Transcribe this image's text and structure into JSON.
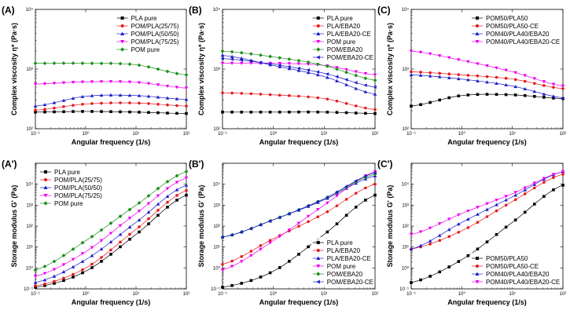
{
  "colors": {
    "black": "#000000",
    "red": "#e8191c",
    "blue": "#1c1cc8",
    "magenta": "#ee00ee",
    "green": "#1a8f1a"
  },
  "chart_data": [
    {
      "panel": "(A)",
      "type": "line",
      "xscale": "log",
      "yscale": "log",
      "xlim": [
        0.1,
        100
      ],
      "ylim": [
        100,
        10000
      ],
      "xlabel": "Angular frequency (1/s)",
      "ylabel": "Complex viscosity η* (Pa·s)",
      "xticks": [
        "10⁻¹",
        "10⁰",
        "10¹",
        "10²"
      ],
      "yticks": [
        "10²",
        "10³",
        "10⁴"
      ],
      "legend_position": "top-right",
      "series": [
        {
          "name": "PLA pure",
          "color": "#000000",
          "marker": "square",
          "x": [
            0.1,
            1,
            10,
            100
          ],
          "y": [
            190,
            195,
            190,
            180
          ]
        },
        {
          "name": "POM/PLA(25/75)",
          "color": "#e8191c",
          "marker": "circle",
          "x": [
            0.1,
            1,
            10,
            100
          ],
          "y": [
            205,
            260,
            270,
            240
          ]
        },
        {
          "name": "POM/PLA(50/50)",
          "color": "#1c1cc8",
          "marker": "triangle-up",
          "x": [
            0.1,
            1,
            10,
            100
          ],
          "y": [
            240,
            350,
            360,
            310
          ]
        },
        {
          "name": "POM/PLA(75/25)",
          "color": "#ee00ee",
          "marker": "triangle-down",
          "x": [
            0.1,
            1,
            10,
            100
          ],
          "y": [
            560,
            610,
            600,
            480
          ]
        },
        {
          "name": "POM pure",
          "color": "#1a8f1a",
          "marker": "diamond",
          "x": [
            0.1,
            1,
            10,
            100
          ],
          "y": [
            1250,
            1250,
            1180,
            800
          ]
        }
      ]
    },
    {
      "panel": "(B)",
      "type": "line",
      "xscale": "log",
      "yscale": "log",
      "xlim": [
        0.1,
        100
      ],
      "ylim": [
        100,
        10000
      ],
      "xlabel": "Angular frequency (1/s)",
      "ylabel": "Complex viscosity η* (Pa·s)",
      "xticks": [
        "10⁻¹",
        "10⁰",
        "10¹",
        "10²"
      ],
      "yticks": [
        "10²",
        "10³",
        "10⁴"
      ],
      "legend_position": "top-right",
      "series": [
        {
          "name": "PLA pure",
          "color": "#000000",
          "marker": "square",
          "x": [
            0.1,
            1,
            10,
            100
          ],
          "y": [
            190,
            190,
            190,
            180
          ]
        },
        {
          "name": "PLA/EBA20",
          "color": "#e8191c",
          "marker": "circle",
          "x": [
            0.1,
            1,
            10,
            100
          ],
          "y": [
            400,
            370,
            320,
            210
          ]
        },
        {
          "name": "PLA/EBA20-CE",
          "color": "#1c1cc8",
          "marker": "triangle-up",
          "x": [
            0.1,
            1,
            10,
            100
          ],
          "y": [
            1700,
            1150,
            750,
            380
          ]
        },
        {
          "name": "POM pure",
          "color": "#ee00ee",
          "marker": "triangle-down",
          "x": [
            0.1,
            1,
            10,
            100
          ],
          "y": [
            1250,
            1250,
            1150,
            800
          ]
        },
        {
          "name": "POM/EBA20",
          "color": "#1a8f1a",
          "marker": "diamond",
          "x": [
            0.1,
            1,
            10,
            100
          ],
          "y": [
            2000,
            1600,
            1150,
            650
          ]
        },
        {
          "name": "POM/EBA20-CE",
          "color": "#1c1cc8",
          "marker": "triangle-left",
          "x": [
            0.1,
            1,
            10,
            100
          ],
          "y": [
            1500,
            1200,
            850,
            500
          ]
        }
      ]
    },
    {
      "panel": "(C)",
      "type": "line",
      "xscale": "log",
      "yscale": "log",
      "xlim": [
        0.1,
        100
      ],
      "ylim": [
        100,
        10000
      ],
      "xlabel": "Angular frequency (1/s)",
      "ylabel": "Complex viscosity η* (Pa·s)",
      "xticks": [
        "10⁻¹",
        "10⁰",
        "10¹",
        "10²"
      ],
      "yticks": [
        "10²",
        "10³",
        "10⁴"
      ],
      "legend_position": "top-right",
      "series": [
        {
          "name": "POM50/PLA50",
          "color": "#000000",
          "marker": "square",
          "x": [
            0.1,
            1,
            10,
            100
          ],
          "y": [
            240,
            360,
            370,
            320
          ]
        },
        {
          "name": "POM50/PLA50-CE",
          "color": "#e8191c",
          "marker": "circle",
          "x": [
            0.1,
            1,
            10,
            100
          ],
          "y": [
            900,
            800,
            680,
            470
          ]
        },
        {
          "name": "POM40/PLA40/EBA20",
          "color": "#1c1cc8",
          "marker": "triangle-up",
          "x": [
            0.1,
            1,
            10,
            100
          ],
          "y": [
            800,
            680,
            520,
            330
          ]
        },
        {
          "name": "POM40/PLA40/EBA20-CE",
          "color": "#ee00ee",
          "marker": "triangle-down",
          "x": [
            0.1,
            1,
            10,
            100
          ],
          "y": [
            2000,
            1400,
            900,
            520
          ]
        }
      ]
    },
    {
      "panel": "(A')",
      "type": "line",
      "xscale": "log",
      "yscale": "log",
      "xlim": [
        0.1,
        100
      ],
      "ylim": [
        0.1,
        100000
      ],
      "xlabel": "Angular frequency (1/s)",
      "ylabel": "Storage modulus G' (Pa)",
      "xticks": [
        "10⁻¹",
        "10⁰",
        "10¹",
        "10²"
      ],
      "yticks": [
        "10⁻¹",
        "10⁰",
        "10¹",
        "10²",
        "10³",
        "10⁴"
      ],
      "legend_position": "top-left",
      "series": [
        {
          "name": "PLA pure",
          "color": "#000000",
          "marker": "square",
          "x": [
            0.1,
            1,
            10,
            100
          ],
          "y": [
            0.12,
            0.7,
            40,
            3000
          ]
        },
        {
          "name": "POM/PLA(25/75)",
          "color": "#e8191c",
          "marker": "circle",
          "x": [
            0.1,
            1,
            10,
            100
          ],
          "y": [
            0.14,
            1,
            70,
            5000
          ]
        },
        {
          "name": "POM/PLA(50/50)",
          "color": "#1c1cc8",
          "marker": "triangle-up",
          "x": [
            0.1,
            1,
            10,
            100
          ],
          "y": [
            0.2,
            2.5,
            150,
            9000
          ]
        },
        {
          "name": "POM/PLA(75/25)",
          "color": "#ee00ee",
          "marker": "triangle-down",
          "x": [
            0.1,
            1,
            10,
            100
          ],
          "y": [
            0.4,
            6,
            400,
            20000
          ]
        },
        {
          "name": "POM pure",
          "color": "#1a8f1a",
          "marker": "diamond",
          "x": [
            0.1,
            1,
            10,
            100
          ],
          "y": [
            0.8,
            20,
            1000,
            40000
          ]
        }
      ]
    },
    {
      "panel": "(B')",
      "type": "line",
      "xscale": "log",
      "yscale": "log",
      "xlim": [
        0.1,
        100
      ],
      "ylim": [
        0.1,
        100000
      ],
      "xlabel": "Angular frequency (1/s)",
      "ylabel": "Storage modulus G' (Pa)",
      "xticks": [
        "10⁻¹",
        "10⁰",
        "10¹",
        "10²"
      ],
      "yticks": [
        "10⁻¹",
        "10⁰",
        "10¹",
        "10²",
        "10³",
        "10⁴"
      ],
      "legend_position": "bottom-right",
      "series": [
        {
          "name": "PLA pure",
          "color": "#000000",
          "marker": "square",
          "x": [
            0.1,
            1,
            10,
            100
          ],
          "y": [
            0.12,
            0.7,
            40,
            3000
          ]
        },
        {
          "name": "PLA/EBA20",
          "color": "#e8191c",
          "marker": "circle",
          "x": [
            0.1,
            1,
            10,
            100
          ],
          "y": [
            1.5,
            25,
            400,
            10000
          ]
        },
        {
          "name": "PLA/EBA20-CE",
          "color": "#1c1cc8",
          "marker": "triangle-up",
          "x": [
            0.1,
            1,
            10,
            100
          ],
          "y": [
            30,
            200,
            1800,
            25000
          ]
        },
        {
          "name": "POM pure",
          "color": "#ee00ee",
          "marker": "triangle-down",
          "x": [
            0.1,
            1,
            10,
            100
          ],
          "y": [
            0.8,
            20,
            1000,
            40000
          ]
        },
        {
          "name": "POM/EBA20",
          "color": "#1a8f1a",
          "marker": "diamond",
          "x": [
            0.1,
            1,
            10,
            100
          ],
          "y": [
            30,
            200,
            2000,
            30000
          ]
        },
        {
          "name": "POM/EBA20-CE",
          "color": "#1c1cc8",
          "marker": "triangle-left",
          "x": [
            0.1,
            1,
            10,
            100
          ],
          "y": [
            30,
            200,
            2000,
            35000
          ]
        }
      ]
    },
    {
      "panel": "(C')",
      "type": "line",
      "xscale": "log",
      "yscale": "log",
      "xlim": [
        0.1,
        100
      ],
      "ylim": [
        0.1,
        100000
      ],
      "xlabel": "Angular frequency (1/s)",
      "ylabel": "Storage modulus G' (Pa)",
      "xticks": [
        "10⁻¹",
        "10⁰",
        "10¹",
        "10²"
      ],
      "yticks": [
        "10⁻¹",
        "10⁰",
        "10¹",
        "10²",
        "10³",
        "10⁴"
      ],
      "legend_position": "bottom-right",
      "series": [
        {
          "name": "POM50/PLA50",
          "color": "#000000",
          "marker": "square",
          "x": [
            0.1,
            1,
            10,
            100
          ],
          "y": [
            0.2,
            2.5,
            150,
            9000
          ]
        },
        {
          "name": "POM50/PLA50-CE",
          "color": "#e8191c",
          "marker": "circle",
          "x": [
            0.1,
            1,
            10,
            100
          ],
          "y": [
            8,
            60,
            1500,
            30000
          ]
        },
        {
          "name": "POM40/PLA40/EBA20",
          "color": "#1c1cc8",
          "marker": "triangle-up",
          "x": [
            0.1,
            1,
            10,
            100
          ],
          "y": [
            8,
            150,
            2500,
            40000
          ]
        },
        {
          "name": "POM40/PLA40/EBA20-CE",
          "color": "#ee00ee",
          "marker": "triangle-down",
          "x": [
            0.1,
            1,
            10,
            100
          ],
          "y": [
            40,
            400,
            3500,
            40000
          ]
        }
      ]
    }
  ]
}
